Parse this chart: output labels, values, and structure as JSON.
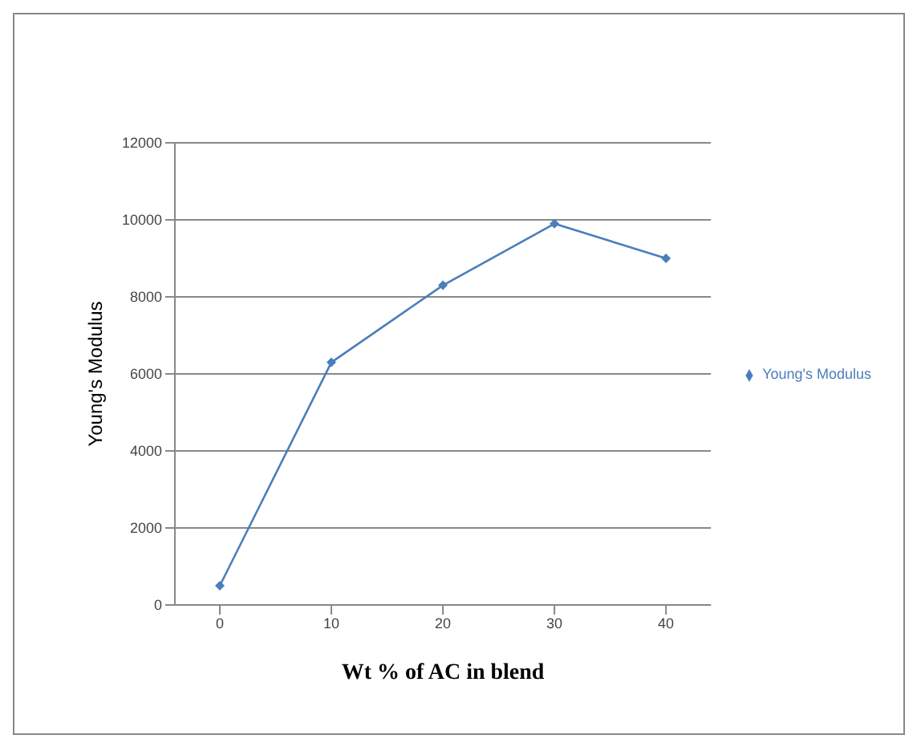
{
  "chart_data": {
    "type": "line",
    "xlabel": "Wt % of AC in blend",
    "ylabel": "Young's Modulus",
    "categories": [
      "0",
      "10",
      "20",
      "30",
      "40"
    ],
    "series": [
      {
        "name": "Young's Modulus",
        "color": "#4a7ebb",
        "values": [
          500,
          6300,
          8300,
          9900,
          9000
        ]
      }
    ],
    "ylim": [
      0,
      12000
    ],
    "yticks": [
      0,
      2000,
      4000,
      6000,
      8000,
      10000,
      12000
    ],
    "grid": "y",
    "legend": "right",
    "marker": "diamond",
    "line_style": "solid"
  }
}
